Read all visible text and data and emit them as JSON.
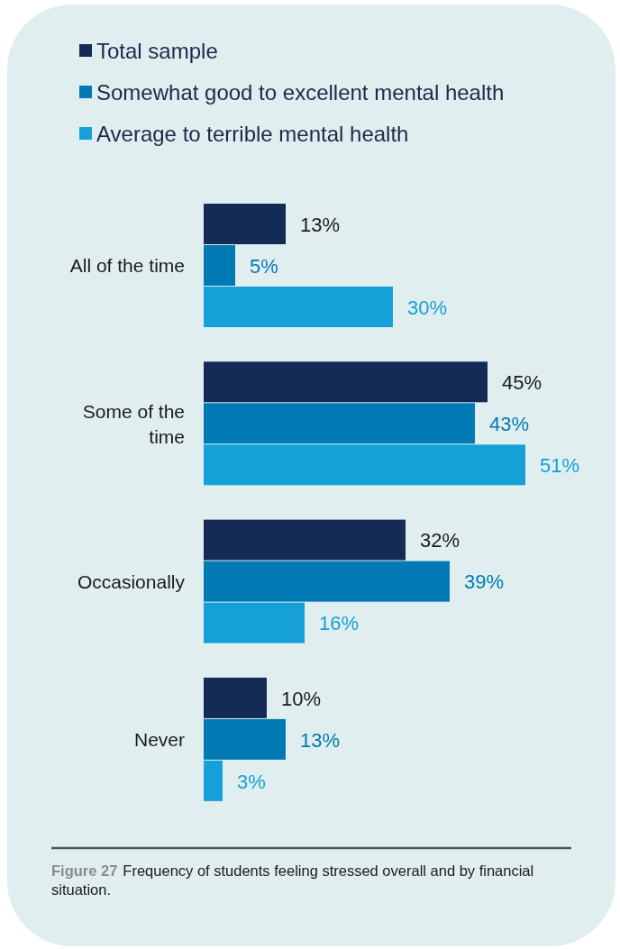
{
  "chart_data": {
    "type": "bar",
    "orientation": "horizontal",
    "categories": [
      "All of the time",
      "Some of the time",
      "Occasionally",
      "Never"
    ],
    "series": [
      {
        "name": "Total sample",
        "color": "#142b55",
        "values": [
          13,
          45,
          32,
          10
        ],
        "value_labels": [
          "13%",
          "45%",
          "32%",
          "10%"
        ]
      },
      {
        "name": "Somewhat good to excellent mental health",
        "color": "#0079b4",
        "values": [
          5,
          43,
          39,
          13
        ],
        "value_labels": [
          "5%",
          "43%",
          "39%",
          "13%"
        ]
      },
      {
        "name": "Average to terrible mental health",
        "color": "#15a1d7",
        "values": [
          30,
          51,
          16,
          3
        ],
        "value_labels": [
          "30%",
          "51%",
          "16%",
          "3%"
        ]
      }
    ],
    "legend": "top left",
    "annotations": [
      "Figure 27",
      "Frequency of students feeling stressed overall and by financial situation."
    ]
  }
}
